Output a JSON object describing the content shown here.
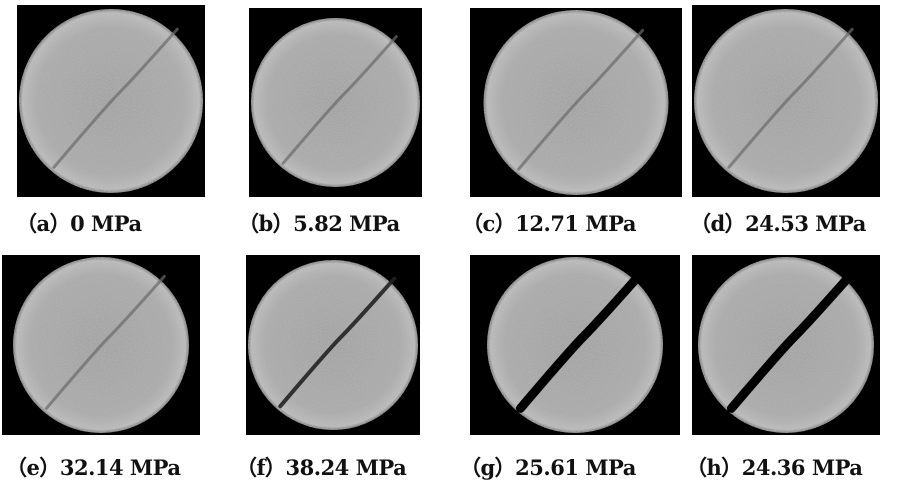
{
  "figure": {
    "panels": [
      {
        "label": "（a）0 MPa",
        "crack": "faint"
      },
      {
        "label": "（b）5.82 MPa",
        "crack": "faint"
      },
      {
        "label": "（c）12.71 MPa",
        "crack": "faint"
      },
      {
        "label": "（d）24.53 MPa",
        "crack": "faint"
      },
      {
        "label": "（e）32.14 MPa",
        "crack": "faint"
      },
      {
        "label": "（f）38.24 MPa",
        "crack": "visible"
      },
      {
        "label": "（g）25.61 MPa",
        "crack": "open"
      },
      {
        "label": "（h）24.36 MPa",
        "crack": "open"
      }
    ]
  }
}
